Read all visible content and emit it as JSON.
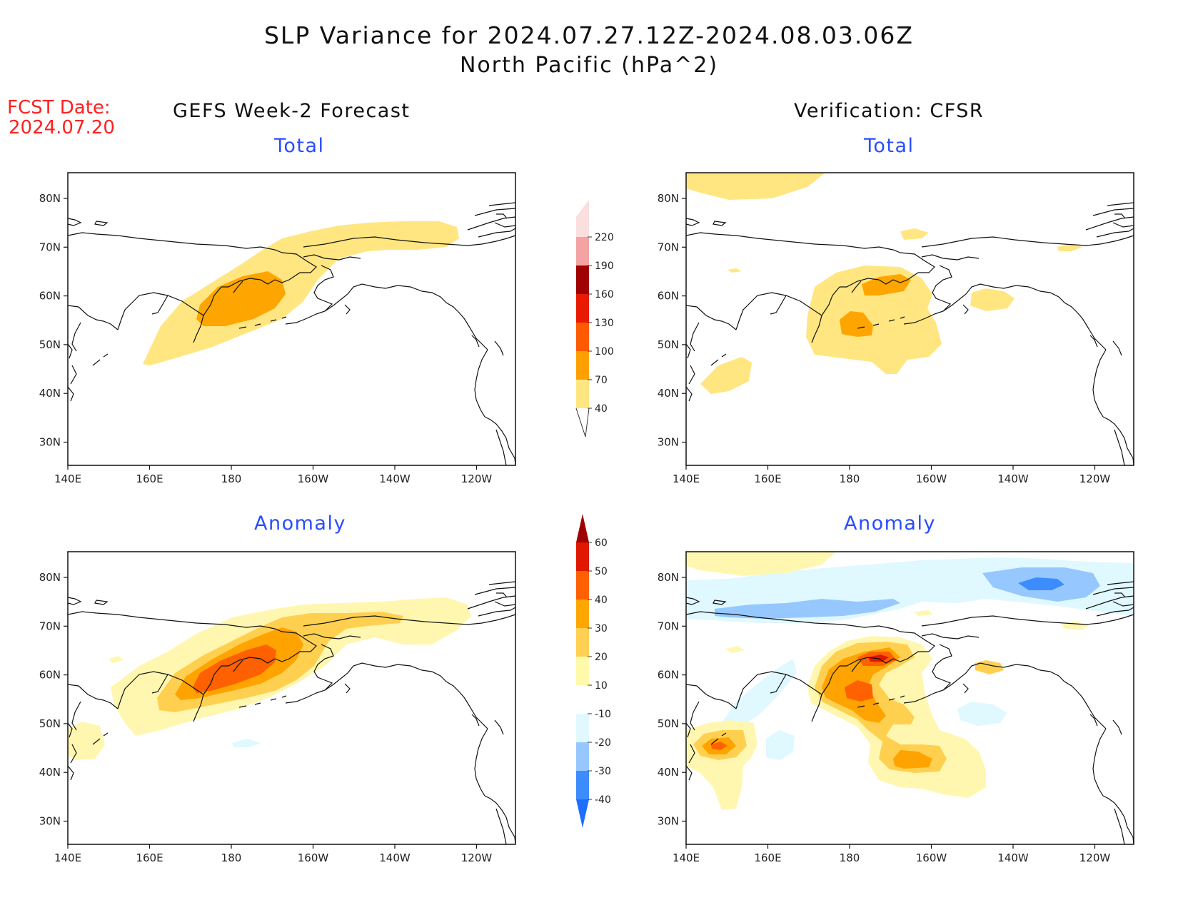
{
  "title": {
    "line1": "SLP Variance for 2024.07.27.12Z-2024.08.03.06Z",
    "line2": "North Pacific (hPa^2)"
  },
  "forecast_date": {
    "label": "FCST Date:",
    "value": "2024.07.20"
  },
  "columns": {
    "left": "GEFS Week-2 Forecast",
    "right": "Verification: CFSR"
  },
  "panel_titles": {
    "top": "Total",
    "bottom": "Anomaly"
  },
  "axes": {
    "x_ticks": [
      "140E",
      "160E",
      "180",
      "160W",
      "140W",
      "120W"
    ],
    "y_ticks": [
      "80N",
      "70N",
      "60N",
      "50N",
      "40N",
      "30N"
    ]
  },
  "colorbars": {
    "total": {
      "levels": [
        "40",
        "70",
        "100",
        "130",
        "160",
        "190",
        "220"
      ],
      "colors": [
        "#ffe680",
        "#ffa000",
        "#ff5a00",
        "#e81b00",
        "#a00000",
        "#f4a3a3",
        "#fbdede"
      ]
    },
    "anomaly": {
      "levels": [
        "-40",
        "-30",
        "-20",
        "-10",
        "10",
        "20",
        "30",
        "40",
        "50",
        "60"
      ],
      "colors": [
        "#1e6fff",
        "#3c8cff",
        "#96c8ff",
        "#e1f8ff",
        "#ffffff",
        "#fffaaa",
        "#ffd052",
        "#ffa600",
        "#ff6000",
        "#e01800",
        "#a00000"
      ]
    }
  },
  "colors": {
    "light": "#ffe680",
    "mid": "#ffa500",
    "strong": "#ff6600",
    "anom_pale": "#fff7b0",
    "anom_lt": "#ffd050",
    "anom_or": "#ffa300",
    "anom_dk": "#ff6000",
    "anom_red": "#dd1800",
    "neg1": "#e0f8ff",
    "neg2": "#96c8ff",
    "neg3": "#3c8cff"
  }
}
